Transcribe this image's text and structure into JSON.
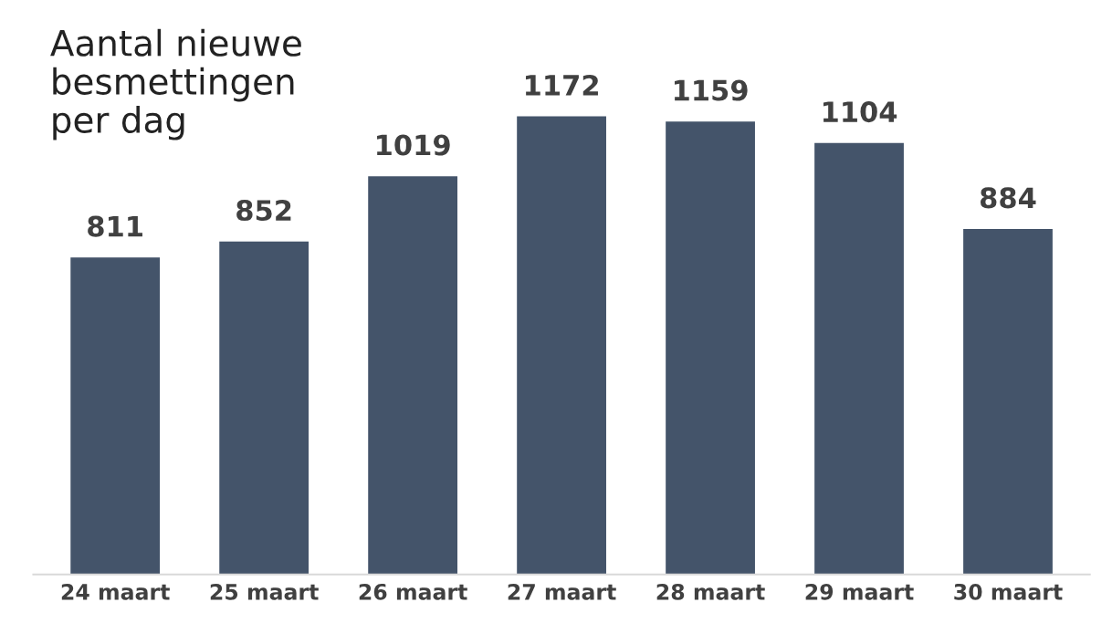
{
  "chart_data": {
    "type": "bar",
    "title": "Aantal nieuwe\nbesmettingen\nper dag",
    "categories": [
      "24 maart",
      "25 maart",
      "26 maart",
      "27 maart",
      "28 maart",
      "29 maart",
      "30 maart"
    ],
    "values": [
      811,
      852,
      1019,
      1172,
      1159,
      1104,
      884
    ],
    "color": "#44546a",
    "data_labels": true,
    "grid": false,
    "legend": false,
    "tick_labels": "x"
  }
}
